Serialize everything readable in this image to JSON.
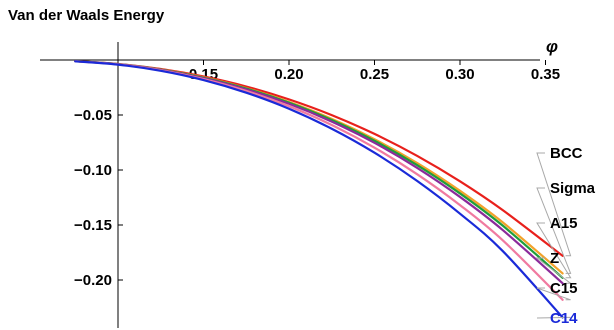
{
  "chart_data": {
    "type": "line",
    "title": "Van der Waals Energy",
    "xlabel": "φ",
    "ylabel": "",
    "xlim": [
      0.1,
      0.365
    ],
    "ylim": [
      -0.24,
      0.008
    ],
    "x_ticks": [
      0.15,
      0.2,
      0.25,
      0.3,
      0.35
    ],
    "x_tick_labels": [
      "0.15",
      "0.20",
      "0.25",
      "0.30",
      "0.35"
    ],
    "y_ticks": [
      -0.05,
      -0.1,
      -0.15,
      -0.2
    ],
    "y_tick_labels": [
      "−0.05",
      "−0.10",
      "−0.15",
      "−0.20"
    ],
    "grid": false,
    "legend_placement": "right",
    "x": [
      0.075,
      0.1,
      0.125,
      0.15,
      0.175,
      0.2,
      0.225,
      0.25,
      0.275,
      0.3,
      0.325,
      0.36
    ],
    "series": [
      {
        "name": "BCC",
        "color": "#e8201c",
        "values": [
          -0.001,
          -0.0036,
          -0.0082,
          -0.015,
          -0.0241,
          -0.0358,
          -0.0501,
          -0.0672,
          -0.0872,
          -0.1103,
          -0.1365,
          -0.178
        ]
      },
      {
        "name": "Sigma",
        "color": "#f2a22a",
        "values": [
          -0.001,
          -0.0037,
          -0.0086,
          -0.0158,
          -0.0256,
          -0.0381,
          -0.0535,
          -0.072,
          -0.0937,
          -0.1189,
          -0.1476,
          -0.194
        ]
      },
      {
        "name": "A15",
        "color": "#1e9e3a",
        "values": [
          -0.001,
          -0.0037,
          -0.0087,
          -0.0161,
          -0.026,
          -0.0388,
          -0.0546,
          -0.0734,
          -0.0956,
          -0.1213,
          -0.1506,
          -0.198
        ]
      },
      {
        "name": "Z",
        "color": "#8b2a9a",
        "values": [
          -0.0011,
          -0.0038,
          -0.0089,
          -0.0165,
          -0.0267,
          -0.0398,
          -0.056,
          -0.0753,
          -0.0981,
          -0.1245,
          -0.1546,
          -0.203
        ]
      },
      {
        "name": "C15",
        "color": "#f07aa0",
        "values": [
          -0.0011,
          -0.004,
          -0.0093,
          -0.0173,
          -0.0281,
          -0.042,
          -0.0591,
          -0.0797,
          -0.1039,
          -0.1319,
          -0.1639,
          -0.218
        ]
      },
      {
        "name": "C14",
        "color": "#1a2ad8",
        "values": [
          -0.0012,
          -0.0042,
          -0.0098,
          -0.0182,
          -0.0297,
          -0.0443,
          -0.0625,
          -0.0843,
          -0.11,
          -0.1397,
          -0.1737,
          -0.234
        ]
      }
    ]
  }
}
